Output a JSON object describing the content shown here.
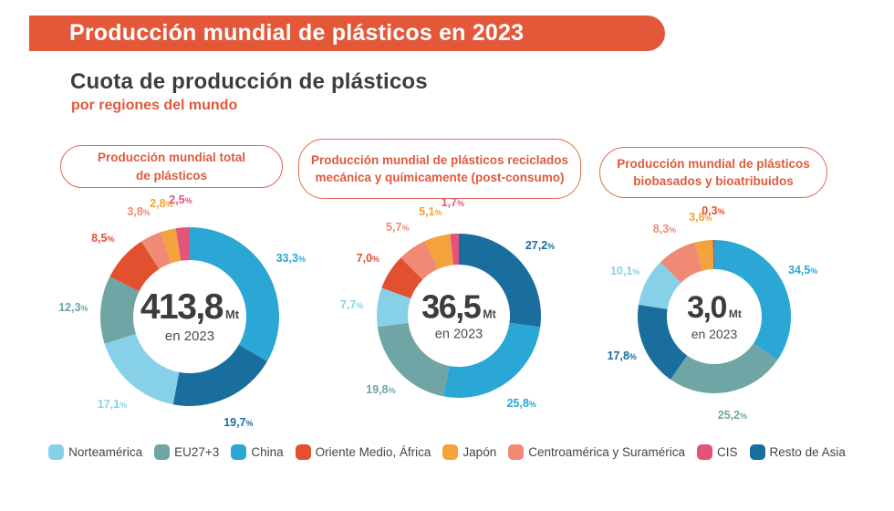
{
  "header": {
    "banner": "Producción mundial de plásticos en 2023",
    "title": "Cuota de producción de plásticos",
    "subtitle": "por regiones del mundo"
  },
  "colors": {
    "accent": "#E4583A",
    "pill_border": "#DB6B4E",
    "center_number": "#3C3C3C",
    "legend_text": "#414747"
  },
  "regions": [
    {
      "name": "Norteamérica",
      "color": "#87D1E8"
    },
    {
      "name": "EU27+3",
      "color": "#6FA5A4"
    },
    {
      "name": "China",
      "color": "#2BA7D6"
    },
    {
      "name": "Oriente Medio, África",
      "color": "#E2502F"
    },
    {
      "name": "Japón",
      "color": "#F3A23D"
    },
    {
      "name": "Centroamérica y Suramérica",
      "color": "#F08A74"
    },
    {
      "name": "CIS",
      "color": "#E4537A"
    },
    {
      "name": "Resto de Asia",
      "color": "#1A6E9E"
    }
  ],
  "chart_data": [
    {
      "type": "pie",
      "title": "Producción mundial total de plásticos",
      "center_value": "413,8",
      "center_unit": "Mt",
      "center_caption": "en 2023",
      "segments": [
        {
          "region": "China",
          "value": 33.3
        },
        {
          "region": "Resto de Asia",
          "value": 19.7
        },
        {
          "region": "Norteamérica",
          "value": 17.1
        },
        {
          "region": "EU27+3",
          "value": 12.3
        },
        {
          "region": "Oriente Medio, África",
          "value": 8.5
        },
        {
          "region": "Centroamérica y Suramérica",
          "value": 3.8
        },
        {
          "region": "Japón",
          "value": 2.8
        },
        {
          "region": "CIS",
          "value": 2.5
        }
      ]
    },
    {
      "type": "pie",
      "title": "Producción mundial de plásticos reciclados mecánica y químicamente (post-consumo)",
      "center_value": "36,5",
      "center_unit": "Mt",
      "center_caption": "en 2023",
      "segments": [
        {
          "region": "Resto de Asia",
          "value": 27.2
        },
        {
          "region": "China",
          "value": 25.8
        },
        {
          "region": "EU27+3",
          "value": 19.8
        },
        {
          "region": "Norteamérica",
          "value": 7.7
        },
        {
          "region": "Oriente Medio, África",
          "value": 7.0
        },
        {
          "region": "Centroamérica y Suramérica",
          "value": 5.7
        },
        {
          "region": "Japón",
          "value": 5.1
        },
        {
          "region": "CIS",
          "value": 1.7
        }
      ]
    },
    {
      "type": "pie",
      "title": "Producción mundial de plásticos biobasados y bioatribuidos",
      "center_value": "3,0",
      "center_unit": "Mt",
      "center_caption": "en 2023",
      "segments": [
        {
          "region": "China",
          "value": 34.5
        },
        {
          "region": "EU27+3",
          "value": 25.2
        },
        {
          "region": "Resto de Asia",
          "value": 17.8
        },
        {
          "region": "Norteamérica",
          "value": 10.1
        },
        {
          "region": "Centroamérica y Suramérica",
          "value": 8.3
        },
        {
          "region": "Japón",
          "value": 3.8
        },
        {
          "region": "Oriente Medio, África",
          "value": 0.3
        }
      ]
    }
  ]
}
